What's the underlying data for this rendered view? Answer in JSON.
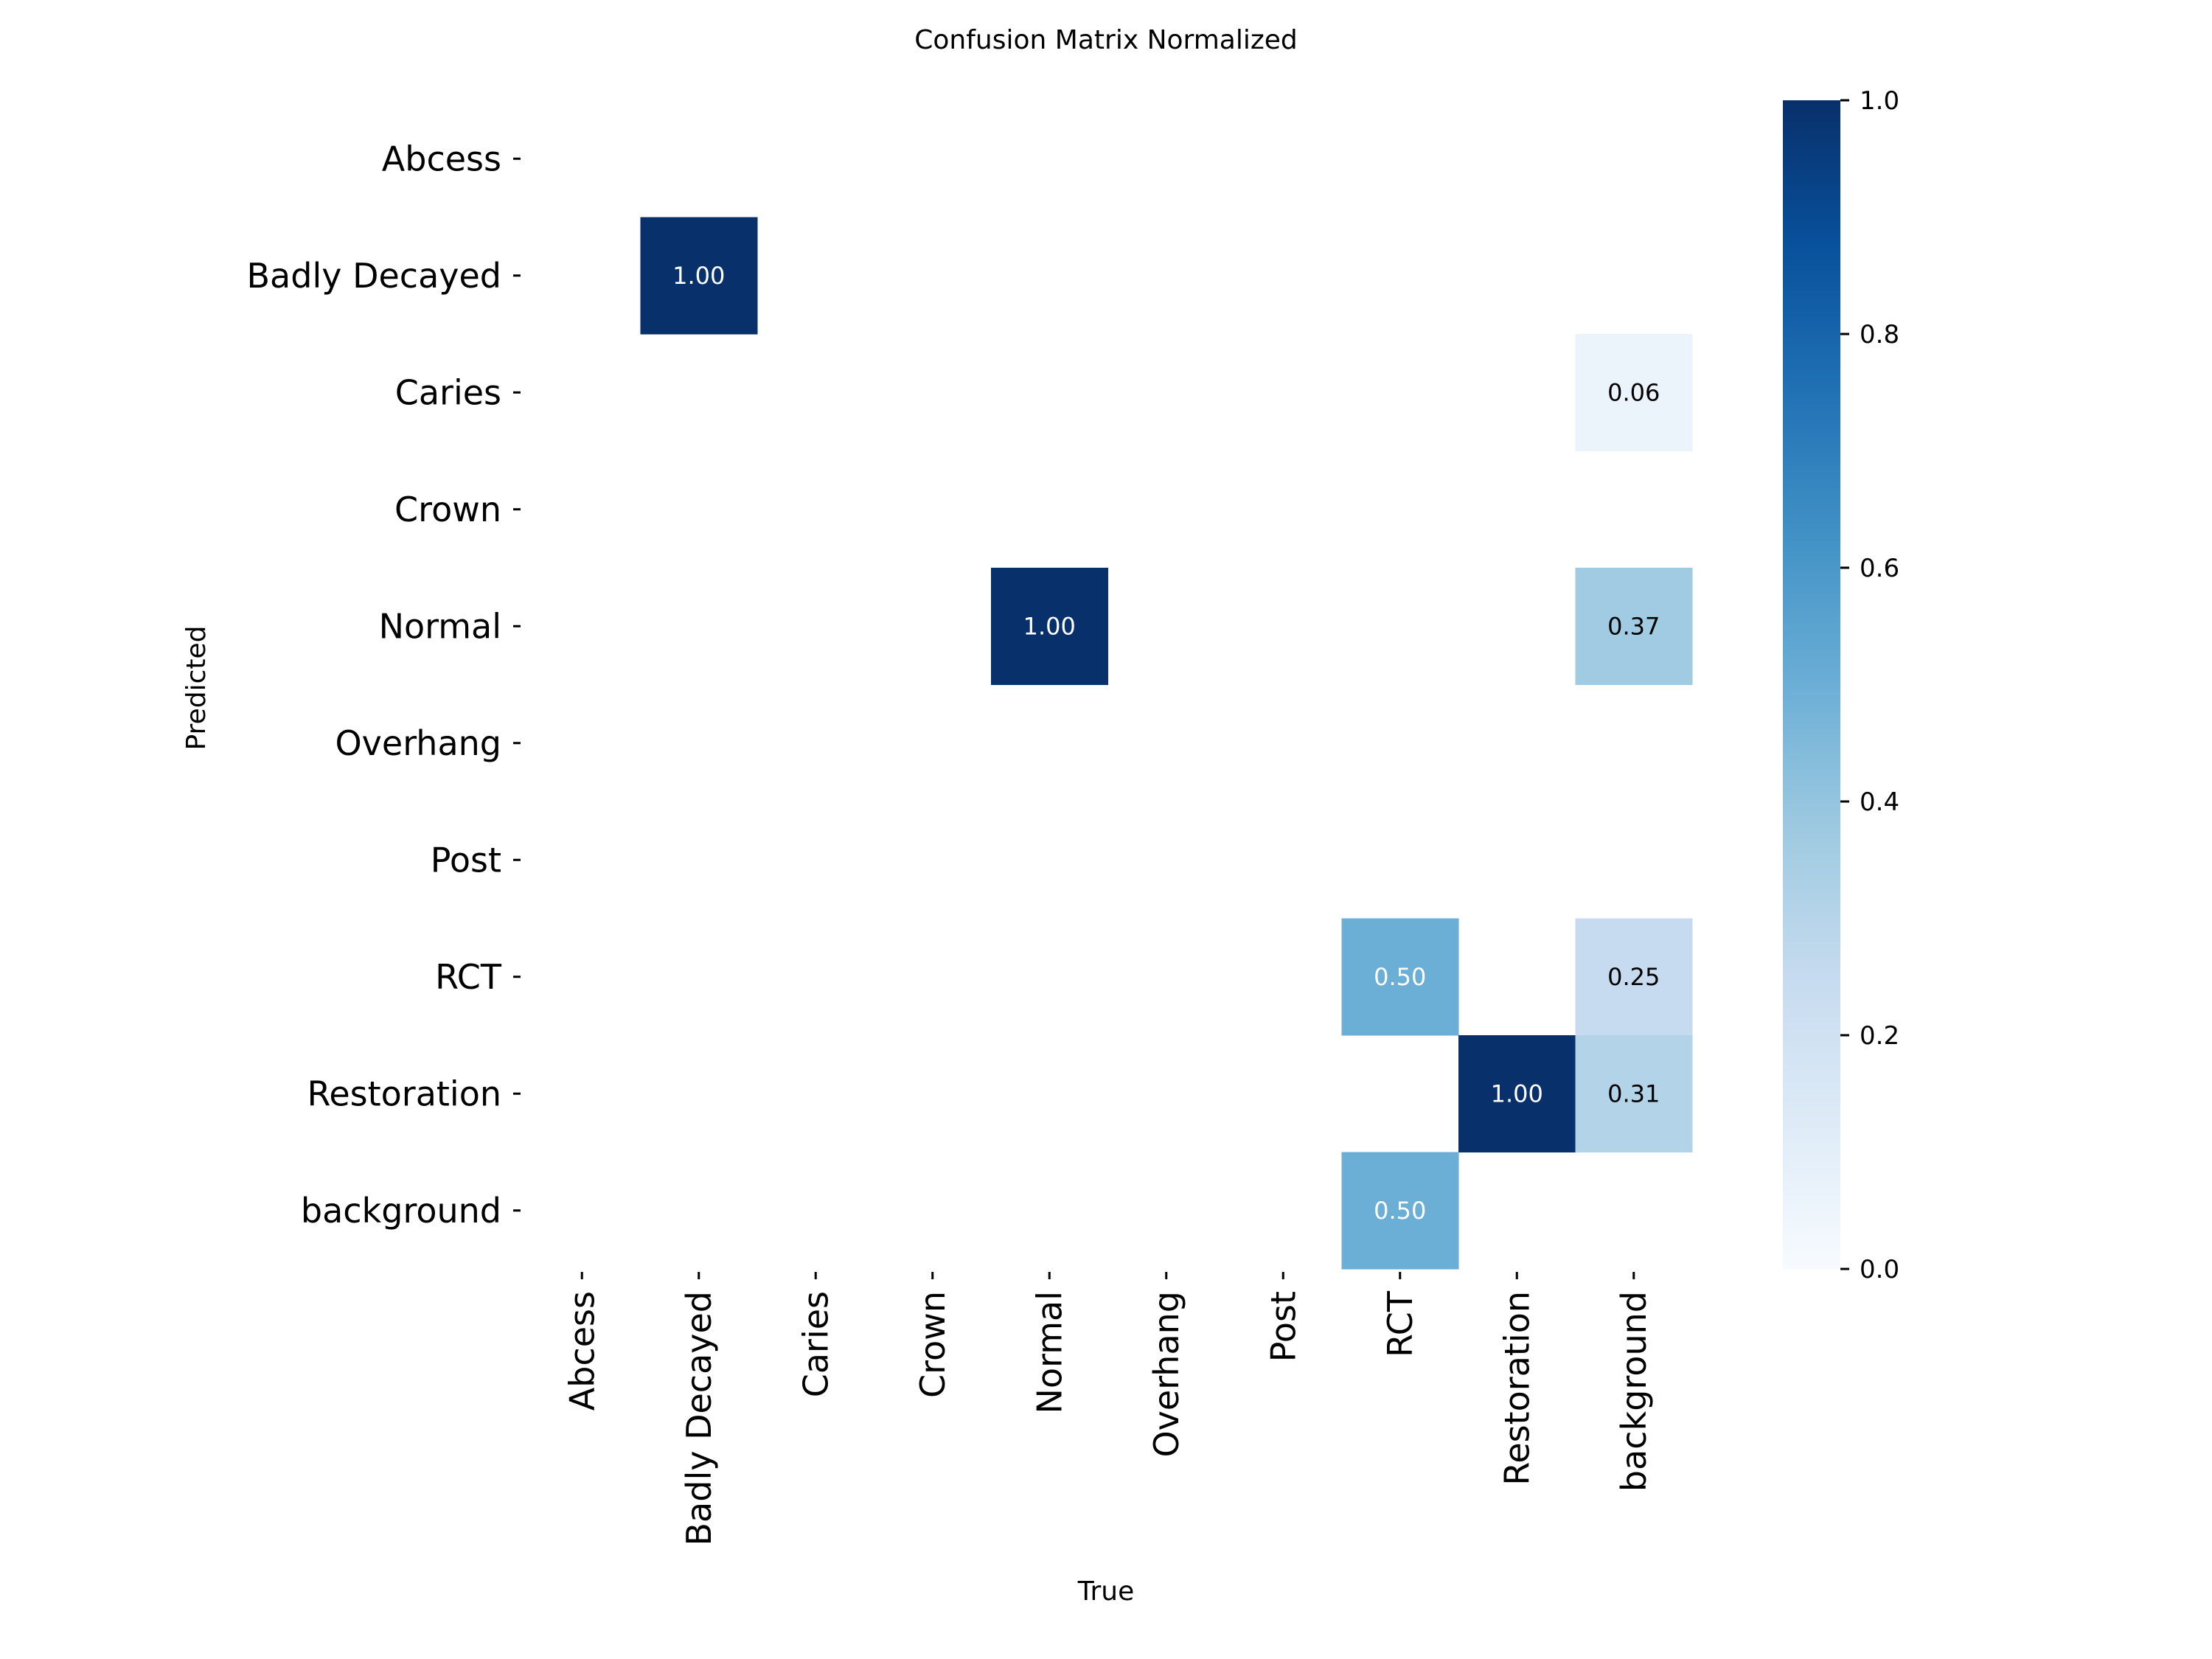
{
  "chart_data": {
    "type": "heatmap",
    "title": "Confusion Matrix Normalized",
    "xlabel": "True",
    "ylabel": "Predicted",
    "x_categories": [
      "Abcess",
      "Badly Decayed",
      "Caries",
      "Crown",
      "Normal",
      "Overhang",
      "Post",
      "RCT",
      "Restoration",
      "background"
    ],
    "y_categories": [
      "Abcess",
      "Badly Decayed",
      "Caries",
      "Crown",
      "Normal",
      "Overhang",
      "Post",
      "RCT",
      "Restoration",
      "background"
    ],
    "cells": [
      {
        "x": "Badly Decayed",
        "y": "Badly Decayed",
        "value": 1.0,
        "label": "1.00"
      },
      {
        "x": "background",
        "y": "Caries",
        "value": 0.06,
        "label": "0.06"
      },
      {
        "x": "Normal",
        "y": "Normal",
        "value": 1.0,
        "label": "1.00"
      },
      {
        "x": "background",
        "y": "Normal",
        "value": 0.37,
        "label": "0.37"
      },
      {
        "x": "RCT",
        "y": "RCT",
        "value": 0.5,
        "label": "0.50"
      },
      {
        "x": "background",
        "y": "RCT",
        "value": 0.25,
        "label": "0.25"
      },
      {
        "x": "Restoration",
        "y": "Restoration",
        "value": 1.0,
        "label": "1.00"
      },
      {
        "x": "background",
        "y": "Restoration",
        "value": 0.31,
        "label": "0.31"
      },
      {
        "x": "RCT",
        "y": "background",
        "value": 0.5,
        "label": "0.50"
      }
    ],
    "colorbar": {
      "range": [
        0.0,
        1.0
      ],
      "ticks": [
        "0.0",
        "0.2",
        "0.4",
        "0.6",
        "0.8",
        "1.0"
      ],
      "colormap": "Blues",
      "colors": [
        "#f7fbff",
        "#deebf7",
        "#c6dbef",
        "#9ecae1",
        "#6baed6",
        "#4292c6",
        "#2171b5",
        "#08519c",
        "#08306b"
      ]
    },
    "grid": false
  }
}
